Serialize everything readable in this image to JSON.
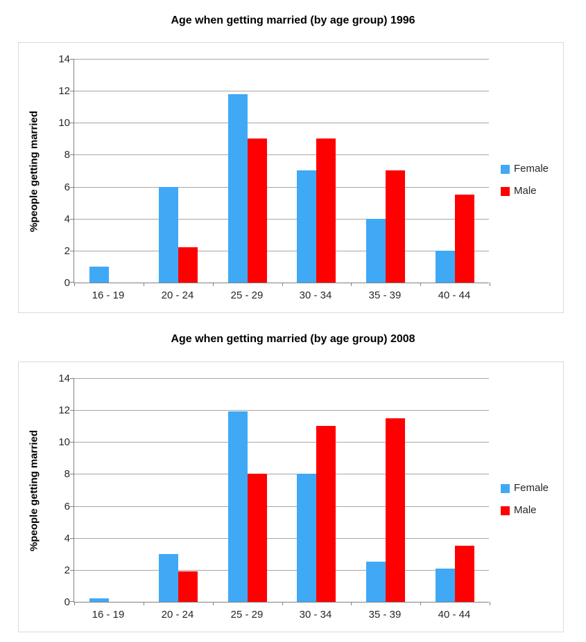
{
  "chart_data": [
    {
      "type": "bar",
      "title": "Age when getting married (by age group) 1996",
      "ylabel": "%people getting married",
      "xlabel": "",
      "categories": [
        "16 - 19",
        "20 - 24",
        "25 - 29",
        "30 - 34",
        "35 - 39",
        "40 - 44"
      ],
      "series": [
        {
          "name": "Female",
          "color": "#3FA9F6",
          "values": [
            1,
            6,
            11.8,
            7,
            4,
            2
          ]
        },
        {
          "name": "Male",
          "color": "#FE0000",
          "values": [
            0,
            2.2,
            9,
            9,
            7,
            5.5
          ]
        }
      ],
      "ylim": [
        0,
        14
      ],
      "ytick_step": 2,
      "grid": true,
      "legend_position": "right"
    },
    {
      "type": "bar",
      "title": "Age when getting married (by age group) 2008",
      "ylabel": "%people getting married",
      "xlabel": "",
      "categories": [
        "16 - 19",
        "20 - 24",
        "25 - 29",
        "30 - 34",
        "35 - 39",
        "40 - 44"
      ],
      "series": [
        {
          "name": "Female",
          "color": "#3FA9F6",
          "values": [
            0.2,
            3,
            11.9,
            8,
            2.5,
            2.1
          ]
        },
        {
          "name": "Male",
          "color": "#FE0000",
          "values": [
            0,
            1.9,
            8,
            11,
            11.5,
            3.5
          ]
        }
      ],
      "ylim": [
        0,
        14
      ],
      "ytick_step": 2,
      "grid": true,
      "legend_position": "right"
    }
  ]
}
